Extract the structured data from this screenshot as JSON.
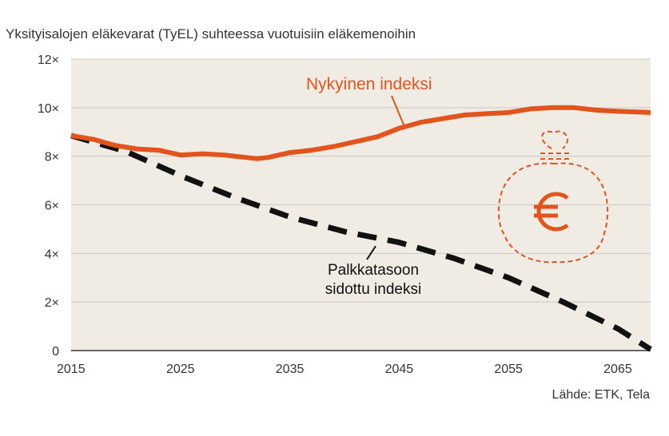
{
  "chart_data": {
    "type": "line",
    "title": "Yksityisalojen eläkevarat (TyEL) suhteessa vuotuisiin eläkemenoihin",
    "source": "Lähde: ETK, Tela",
    "x_ticks": [
      "2015",
      "2025",
      "2035",
      "2045",
      "2055",
      "2065"
    ],
    "y_ticks": [
      "0",
      "2×",
      "4×",
      "6×",
      "8×",
      "10×",
      "12×"
    ],
    "xlim": [
      2015,
      2068
    ],
    "ylim": [
      0,
      12
    ],
    "grid": "horizontal",
    "series": [
      {
        "name": "Nykyinen indeksi",
        "color": "#e2541b",
        "style": "solid",
        "points": [
          [
            2015,
            8.85
          ],
          [
            2017,
            8.7
          ],
          [
            2019,
            8.45
          ],
          [
            2021,
            8.3
          ],
          [
            2023,
            8.25
          ],
          [
            2025,
            8.05
          ],
          [
            2027,
            8.1
          ],
          [
            2029,
            8.05
          ],
          [
            2031,
            7.95
          ],
          [
            2032,
            7.9
          ],
          [
            2033,
            7.95
          ],
          [
            2035,
            8.15
          ],
          [
            2037,
            8.25
          ],
          [
            2039,
            8.4
          ],
          [
            2041,
            8.6
          ],
          [
            2043,
            8.8
          ],
          [
            2045,
            9.15
          ],
          [
            2047,
            9.4
          ],
          [
            2049,
            9.55
          ],
          [
            2051,
            9.7
          ],
          [
            2053,
            9.75
          ],
          [
            2055,
            9.8
          ],
          [
            2057,
            9.95
          ],
          [
            2059,
            10.0
          ],
          [
            2061,
            10.0
          ],
          [
            2063,
            9.9
          ],
          [
            2065,
            9.85
          ],
          [
            2068,
            9.8
          ]
        ]
      },
      {
        "name": "Palkkatasoon sidottu indeksi",
        "color": "#111111",
        "style": "dashed",
        "points": [
          [
            2015,
            8.85
          ],
          [
            2020,
            8.2
          ],
          [
            2025,
            7.2
          ],
          [
            2030,
            6.3
          ],
          [
            2035,
            5.5
          ],
          [
            2040,
            4.9
          ],
          [
            2045,
            4.45
          ],
          [
            2050,
            3.8
          ],
          [
            2055,
            3.0
          ],
          [
            2060,
            2.0
          ],
          [
            2065,
            0.9
          ],
          [
            2068,
            0.05
          ]
        ]
      }
    ],
    "annotations": [
      {
        "text": "Nykyinen indeksi",
        "series": 0
      },
      {
        "text_lines": [
          "Palkkatasoon",
          "sidottu indeksi"
        ],
        "series": 1
      }
    ],
    "icon": "money-bag-euro-icon"
  }
}
